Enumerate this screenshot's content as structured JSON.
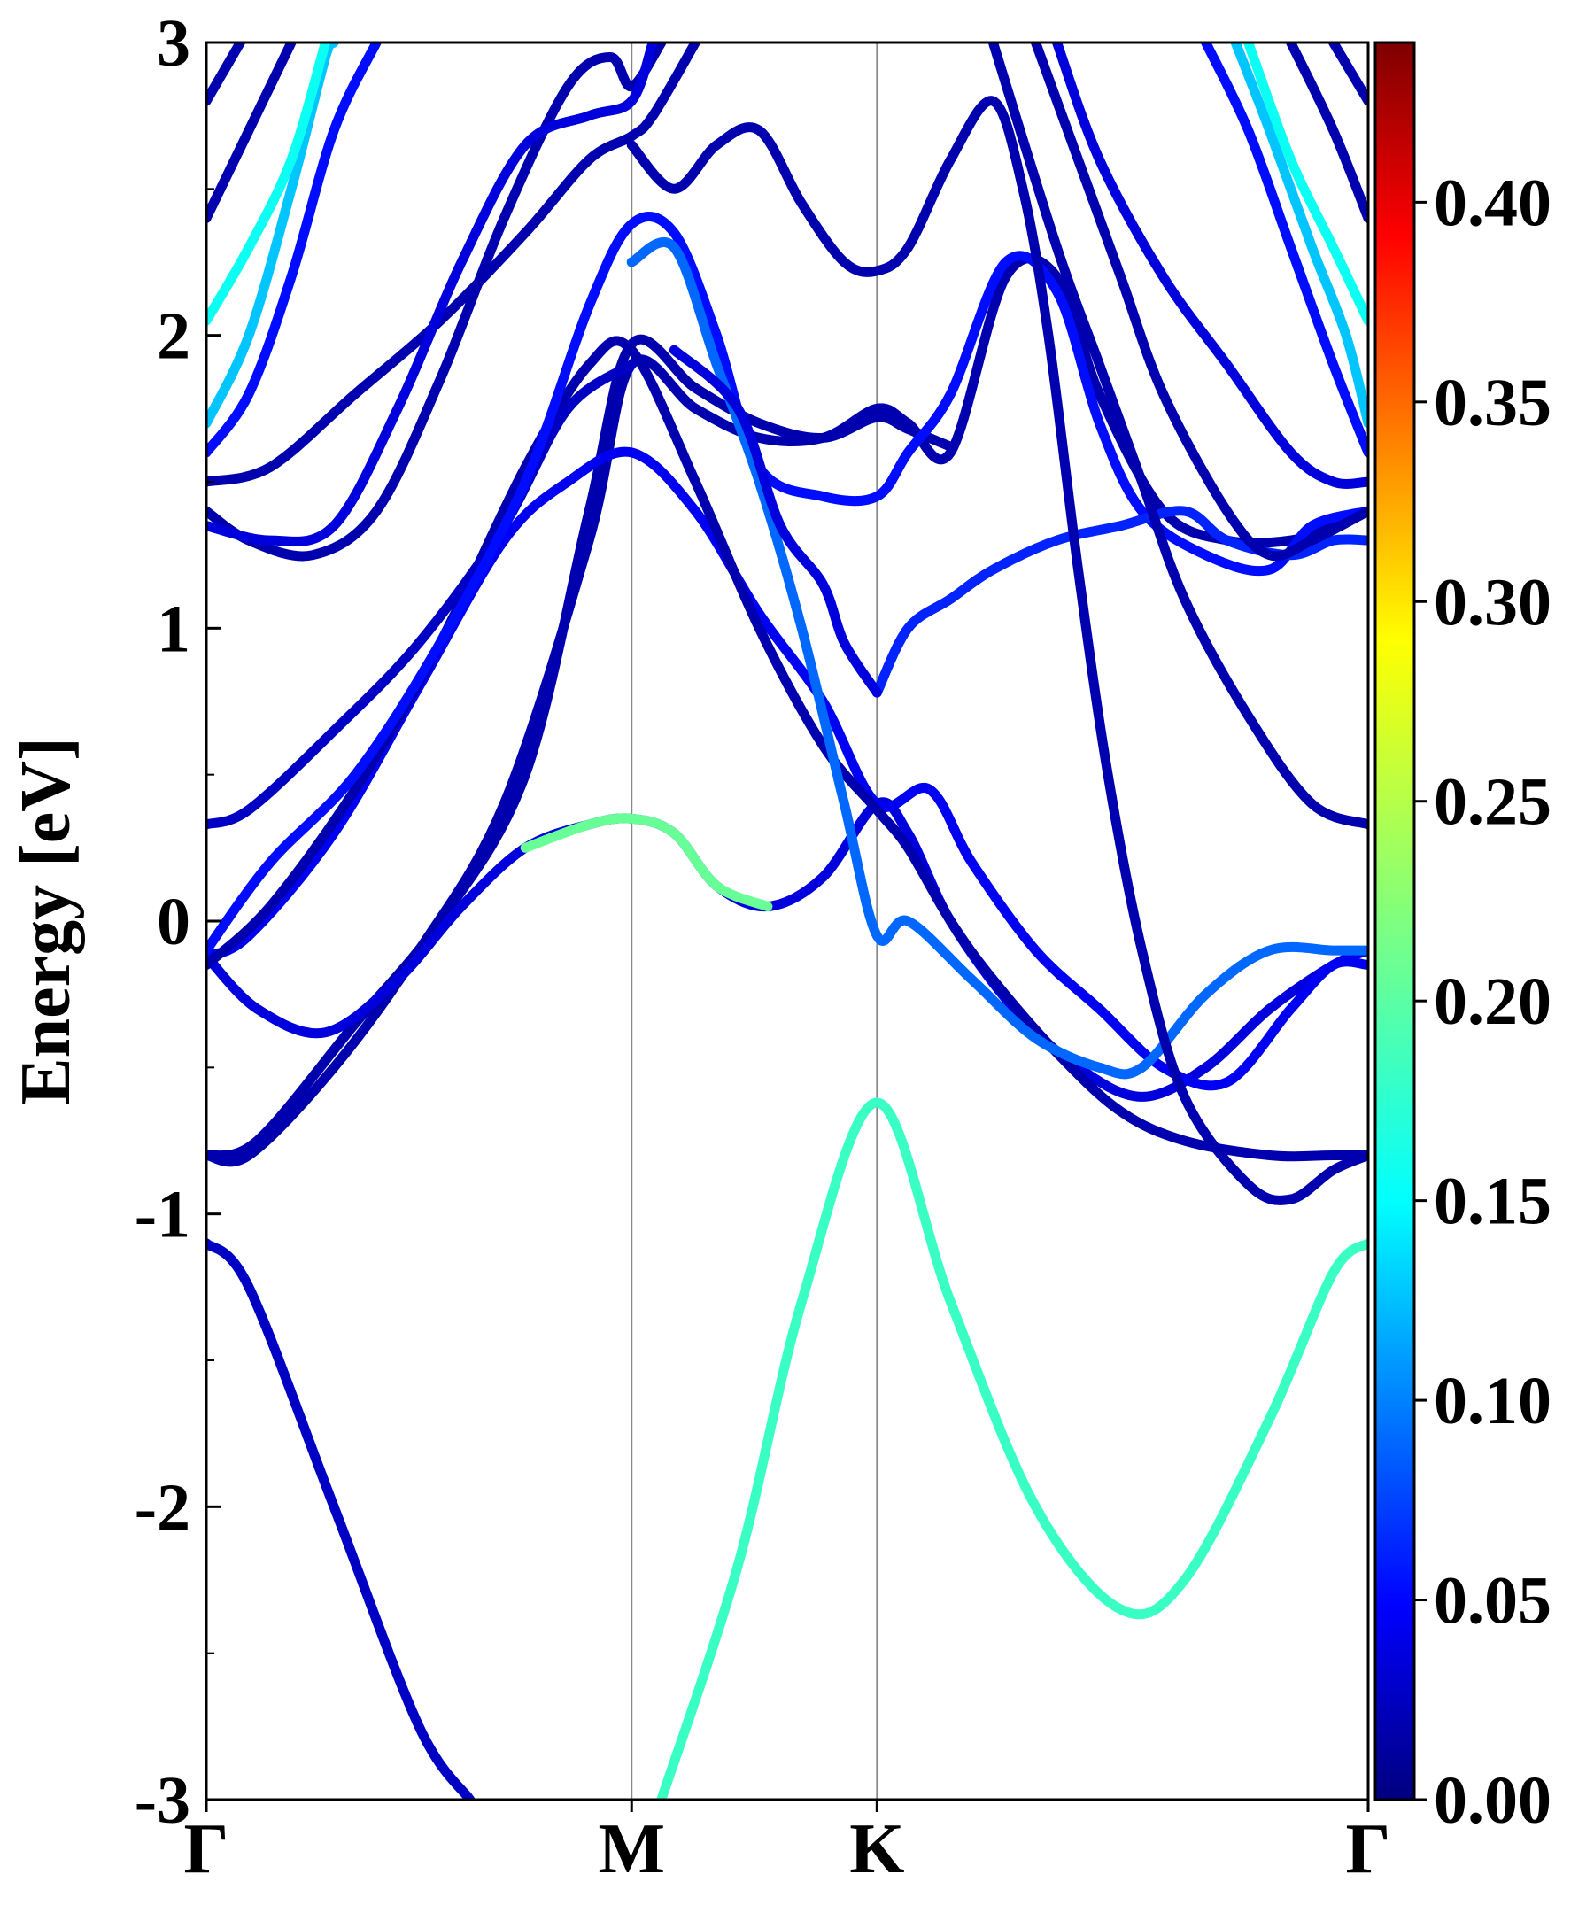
{
  "chart_data": {
    "type": "line",
    "ylabel": "Energy [eV]",
    "xlabel": "",
    "ylim": [
      -3,
      3
    ],
    "y_ticks": [
      "3",
      "2",
      "1",
      "0",
      "-1",
      "-2",
      "-3"
    ],
    "y_tick_values": [
      3,
      2,
      1,
      0,
      -1,
      -2,
      -3
    ],
    "k_labels": [
      "Γ",
      "M",
      "K",
      "Γ"
    ],
    "k_positions": [
      0,
      1,
      1.577,
      2.732
    ],
    "grid": false,
    "vertical_lines_at_k_points": true,
    "colorbar": {
      "colormap": "jet",
      "range": [
        0,
        0.44
      ],
      "ticks": [
        "0.00",
        "0.05",
        "0.10",
        "0.15",
        "0.20",
        "0.25",
        "0.30",
        "0.35",
        "0.40"
      ],
      "tick_values": [
        0,
        0.05,
        0.1,
        0.15,
        0.2,
        0.25,
        0.3,
        0.35,
        0.4
      ]
    },
    "bands": [
      {
        "weight": 0.03,
        "points": [
          [
            0,
            -1.1
          ],
          [
            0.1,
            -1.25
          ],
          [
            0.3,
            -2.0
          ],
          [
            0.5,
            -2.75
          ],
          [
            0.62,
            -3.0
          ]
        ]
      },
      {
        "weight": 0.19,
        "points": [
          [
            1.07,
            -3.0
          ],
          [
            1.25,
            -2.2
          ],
          [
            1.4,
            -1.3
          ],
          [
            1.577,
            -0.62
          ],
          [
            1.75,
            -1.3
          ],
          [
            1.95,
            -2.0
          ],
          [
            2.15,
            -2.35
          ],
          [
            2.3,
            -2.25
          ],
          [
            2.5,
            -1.7
          ],
          [
            2.65,
            -1.2
          ],
          [
            2.732,
            -1.1
          ]
        ]
      },
      {
        "weight": 0.02,
        "points": [
          [
            0,
            -0.8
          ],
          [
            0.1,
            -0.8
          ],
          [
            0.3,
            -0.5
          ],
          [
            0.5,
            -0.1
          ],
          [
            0.7,
            0.4
          ],
          [
            0.9,
            1.3
          ],
          [
            1.0,
            1.9
          ],
          [
            1.15,
            1.75
          ],
          [
            1.3,
            1.65
          ],
          [
            1.45,
            1.65
          ],
          [
            1.577,
            1.75
          ],
          [
            1.65,
            1.7
          ],
          [
            1.75,
            1.6
          ],
          [
            1.88,
            2.2
          ],
          [
            2.0,
            2.2
          ],
          [
            2.1,
            1.8
          ],
          [
            2.25,
            1.4
          ],
          [
            2.4,
            1.3
          ],
          [
            2.55,
            1.3
          ],
          [
            2.65,
            1.35
          ],
          [
            2.732,
            1.4
          ]
        ]
      },
      {
        "weight": 0.02,
        "points": [
          [
            0,
            -0.8
          ],
          [
            0.12,
            -0.75
          ],
          [
            0.35,
            -0.35
          ],
          [
            0.55,
            0.0
          ],
          [
            0.75,
            0.5
          ],
          [
            0.9,
            1.4
          ],
          [
            1.0,
            1.97
          ],
          [
            1.15,
            1.82
          ],
          [
            1.3,
            1.7
          ],
          [
            1.45,
            1.65
          ],
          [
            1.577,
            1.72
          ],
          [
            1.65,
            1.68
          ],
          [
            1.75,
            1.62
          ]
        ]
      },
      {
        "weight": 0.04,
        "points": [
          [
            0,
            -0.12
          ],
          [
            0.12,
            -0.3
          ],
          [
            0.28,
            -0.38
          ],
          [
            0.45,
            -0.2
          ],
          [
            0.6,
            0.05
          ],
          [
            0.75,
            0.25
          ],
          [
            0.9,
            0.33
          ],
          [
            1.0,
            0.35
          ],
          [
            1.1,
            0.3
          ],
          [
            1.2,
            0.12
          ],
          [
            1.32,
            0.05
          ],
          [
            1.45,
            0.15
          ],
          [
            1.577,
            0.4
          ],
          [
            1.65,
            0.3
          ],
          [
            1.75,
            0.0
          ],
          [
            1.9,
            -0.3
          ],
          [
            2.05,
            -0.5
          ],
          [
            2.2,
            -0.6
          ],
          [
            2.35,
            -0.5
          ],
          [
            2.5,
            -0.3
          ],
          [
            2.65,
            -0.15
          ],
          [
            2.732,
            -0.1
          ]
        ],
        "highlight": {
          "weight": 0.21,
          "from": 0.62,
          "to": 1.35
        }
      },
      {
        "weight": 0.05,
        "points": [
          [
            0,
            -0.12
          ],
          [
            0.1,
            -0.05
          ],
          [
            0.3,
            0.3
          ],
          [
            0.5,
            0.8
          ],
          [
            0.7,
            1.3
          ],
          [
            0.85,
            1.5
          ],
          [
            1.0,
            1.6
          ],
          [
            1.15,
            1.4
          ],
          [
            1.3,
            1.05
          ],
          [
            1.45,
            0.75
          ],
          [
            1.577,
            0.4
          ],
          [
            1.7,
            0.45
          ],
          [
            1.8,
            0.2
          ],
          [
            1.95,
            -0.1
          ],
          [
            2.1,
            -0.3
          ],
          [
            2.25,
            -0.5
          ],
          [
            2.4,
            -0.55
          ],
          [
            2.55,
            -0.3
          ],
          [
            2.65,
            -0.15
          ],
          [
            2.732,
            -0.15
          ]
        ]
      },
      {
        "weight": 0.02,
        "points": [
          [
            0,
            -0.15
          ],
          [
            0.15,
            0.05
          ],
          [
            0.35,
            0.45
          ],
          [
            0.55,
            0.95
          ],
          [
            0.75,
            1.55
          ],
          [
            0.9,
            1.9
          ],
          [
            1.0,
            1.95
          ],
          [
            1.15,
            1.5
          ],
          [
            1.3,
            1.0
          ],
          [
            1.45,
            0.6
          ],
          [
            1.577,
            0.38
          ],
          [
            1.65,
            0.25
          ],
          [
            1.75,
            0.0
          ],
          [
            1.85,
            -0.2
          ],
          [
            2.0,
            -0.45
          ],
          [
            2.15,
            -0.65
          ],
          [
            2.3,
            -0.75
          ],
          [
            2.5,
            -0.8
          ],
          [
            2.65,
            -0.8
          ],
          [
            2.732,
            -0.8
          ]
        ]
      },
      {
        "weight": 0.03,
        "points": [
          [
            0,
            0.33
          ],
          [
            0.1,
            0.38
          ],
          [
            0.3,
            0.65
          ],
          [
            0.5,
            0.95
          ],
          [
            0.7,
            1.35
          ],
          [
            0.85,
            1.75
          ],
          [
            1.0,
            1.9
          ]
        ]
      },
      {
        "weight": 0.06,
        "points": [
          [
            0,
            -0.1
          ],
          [
            0.15,
            0.2
          ],
          [
            0.35,
            0.5
          ],
          [
            0.55,
            0.95
          ],
          [
            0.75,
            1.5
          ],
          [
            0.9,
            2.1
          ],
          [
            1.0,
            2.38
          ],
          [
            1.1,
            2.35
          ],
          [
            1.2,
            2.0
          ],
          [
            1.3,
            1.55
          ],
          [
            1.45,
            1.45
          ],
          [
            1.577,
            1.45
          ],
          [
            1.65,
            1.6
          ],
          [
            1.75,
            1.8
          ],
          [
            1.88,
            2.25
          ],
          [
            2.0,
            2.15
          ],
          [
            2.1,
            1.7
          ],
          [
            2.2,
            1.4
          ],
          [
            2.35,
            1.25
          ],
          [
            2.5,
            1.2
          ],
          [
            2.6,
            1.35
          ],
          [
            2.732,
            1.4
          ]
        ]
      },
      {
        "weight": 0.1,
        "points": [
          [
            1.0,
            2.25
          ],
          [
            1.1,
            2.3
          ],
          [
            1.2,
            1.9
          ],
          [
            1.3,
            1.5
          ],
          [
            1.4,
            1.0
          ],
          [
            1.5,
            0.4
          ],
          [
            1.577,
            -0.05
          ],
          [
            1.65,
            0.0
          ],
          [
            1.8,
            -0.2
          ],
          [
            1.95,
            -0.4
          ],
          [
            2.1,
            -0.5
          ],
          [
            2.2,
            -0.5
          ],
          [
            2.35,
            -0.25
          ],
          [
            2.5,
            -0.1
          ],
          [
            2.65,
            -0.1
          ],
          [
            2.732,
            -0.1
          ]
        ]
      },
      {
        "weight": 0.07,
        "points": [
          [
            1.577,
            0.78
          ],
          [
            1.65,
            1.0
          ],
          [
            1.75,
            1.1
          ],
          [
            1.85,
            1.2
          ],
          [
            2.0,
            1.3
          ],
          [
            2.15,
            1.35
          ],
          [
            2.3,
            1.4
          ],
          [
            2.4,
            1.3
          ],
          [
            2.55,
            1.25
          ],
          [
            2.65,
            1.3
          ],
          [
            2.732,
            1.3
          ]
        ]
      },
      {
        "weight": 0.04,
        "points": [
          [
            1.577,
            0.78
          ],
          [
            1.5,
            0.95
          ],
          [
            1.45,
            1.15
          ],
          [
            1.35,
            1.35
          ],
          [
            1.25,
            1.75
          ],
          [
            1.1,
            1.95
          ]
        ]
      },
      {
        "weight": 0.02,
        "points": [
          [
            1.0,
            2.65
          ],
          [
            1.1,
            2.5
          ],
          [
            1.2,
            2.65
          ],
          [
            1.3,
            2.7
          ],
          [
            1.4,
            2.45
          ],
          [
            1.5,
            2.25
          ],
          [
            1.577,
            2.22
          ],
          [
            1.65,
            2.3
          ],
          [
            1.75,
            2.6
          ],
          [
            1.85,
            2.8
          ],
          [
            1.92,
            2.5
          ],
          [
            1.98,
            2.0
          ],
          [
            2.05,
            1.2
          ],
          [
            2.12,
            0.5
          ],
          [
            2.2,
            -0.1
          ],
          [
            2.3,
            -0.6
          ],
          [
            2.45,
            -0.9
          ],
          [
            2.55,
            -0.95
          ],
          [
            2.65,
            -0.85
          ],
          [
            2.732,
            -0.8
          ]
        ]
      },
      {
        "weight": 0.02,
        "points": [
          [
            0,
            1.5
          ],
          [
            0.15,
            1.55
          ],
          [
            0.35,
            1.8
          ],
          [
            0.55,
            2.05
          ],
          [
            0.75,
            2.35
          ],
          [
            0.9,
            2.6
          ],
          [
            1.0,
            2.68
          ],
          [
            1.05,
            2.75
          ],
          [
            1.15,
            3.0
          ]
        ]
      },
      {
        "weight": 0.02,
        "points": [
          [
            0,
            1.4
          ],
          [
            0.1,
            1.3
          ],
          [
            0.25,
            1.25
          ],
          [
            0.4,
            1.4
          ],
          [
            0.55,
            1.85
          ],
          [
            0.7,
            2.4
          ],
          [
            0.85,
            2.85
          ],
          [
            0.95,
            2.95
          ],
          [
            1.0,
            2.85
          ],
          [
            1.07,
            3.0
          ]
        ]
      },
      {
        "weight": 0.04,
        "points": [
          [
            0,
            1.35
          ],
          [
            0.15,
            1.3
          ],
          [
            0.3,
            1.35
          ],
          [
            0.45,
            1.75
          ],
          [
            0.6,
            2.25
          ],
          [
            0.75,
            2.65
          ],
          [
            0.9,
            2.75
          ],
          [
            1.0,
            2.8
          ],
          [
            1.05,
            3.0
          ]
        ]
      },
      {
        "weight": 0.06,
        "points": [
          [
            0,
            1.6
          ],
          [
            0.1,
            1.8
          ],
          [
            0.2,
            2.2
          ],
          [
            0.3,
            2.7
          ],
          [
            0.4,
            3.0
          ]
        ]
      },
      {
        "weight": 0.14,
        "points": [
          [
            0,
            1.7
          ],
          [
            0.1,
            2.0
          ],
          [
            0.2,
            2.5
          ],
          [
            0.28,
            2.95
          ],
          [
            0.3,
            3.0
          ]
        ]
      },
      {
        "weight": 0.02,
        "points": [
          [
            0,
            2.4
          ],
          [
            0.1,
            2.7
          ],
          [
            0.2,
            3.0
          ]
        ]
      },
      {
        "weight": 0.02,
        "points": [
          [
            0,
            2.8
          ],
          [
            0.08,
            3.0
          ]
        ]
      },
      {
        "weight": 0.17,
        "points": [
          [
            0,
            2.05
          ],
          [
            0.1,
            2.3
          ],
          [
            0.2,
            2.6
          ],
          [
            0.28,
            3.0
          ]
        ]
      },
      {
        "weight": 0.02,
        "points": [
          [
            1.95,
            3.0
          ],
          [
            2.05,
            2.6
          ],
          [
            2.15,
            2.2
          ],
          [
            2.25,
            1.8
          ],
          [
            2.4,
            1.4
          ],
          [
            2.5,
            1.25
          ],
          [
            2.6,
            1.3
          ],
          [
            2.732,
            1.4
          ]
        ]
      },
      {
        "weight": 0.02,
        "points": [
          [
            1.85,
            3.0
          ],
          [
            2.0,
            2.3
          ],
          [
            2.1,
            1.9
          ],
          [
            2.2,
            1.5
          ],
          [
            2.3,
            1.1
          ],
          [
            2.45,
            0.7
          ],
          [
            2.6,
            0.4
          ],
          [
            2.732,
            0.33
          ]
        ]
      },
      {
        "weight": 0.04,
        "points": [
          [
            2.0,
            3.0
          ],
          [
            2.1,
            2.6
          ],
          [
            2.25,
            2.2
          ],
          [
            2.4,
            1.9
          ],
          [
            2.55,
            1.6
          ],
          [
            2.65,
            1.5
          ],
          [
            2.732,
            1.5
          ]
        ]
      },
      {
        "weight": 0.06,
        "points": [
          [
            2.35,
            3.0
          ],
          [
            2.45,
            2.7
          ],
          [
            2.55,
            2.3
          ],
          [
            2.65,
            1.9
          ],
          [
            2.732,
            1.6
          ]
        ]
      },
      {
        "weight": 0.14,
        "points": [
          [
            2.42,
            3.0
          ],
          [
            2.5,
            2.7
          ],
          [
            2.6,
            2.3
          ],
          [
            2.68,
            2.0
          ],
          [
            2.732,
            1.7
          ]
        ]
      },
      {
        "weight": 0.17,
        "points": [
          [
            2.45,
            3.0
          ],
          [
            2.55,
            2.6
          ],
          [
            2.65,
            2.3
          ],
          [
            2.732,
            2.05
          ]
        ]
      },
      {
        "weight": 0.02,
        "points": [
          [
            2.55,
            3.0
          ],
          [
            2.65,
            2.7
          ],
          [
            2.732,
            2.4
          ]
        ]
      },
      {
        "weight": 0.02,
        "points": [
          [
            2.65,
            3.0
          ],
          [
            2.732,
            2.8
          ]
        ]
      }
    ]
  }
}
